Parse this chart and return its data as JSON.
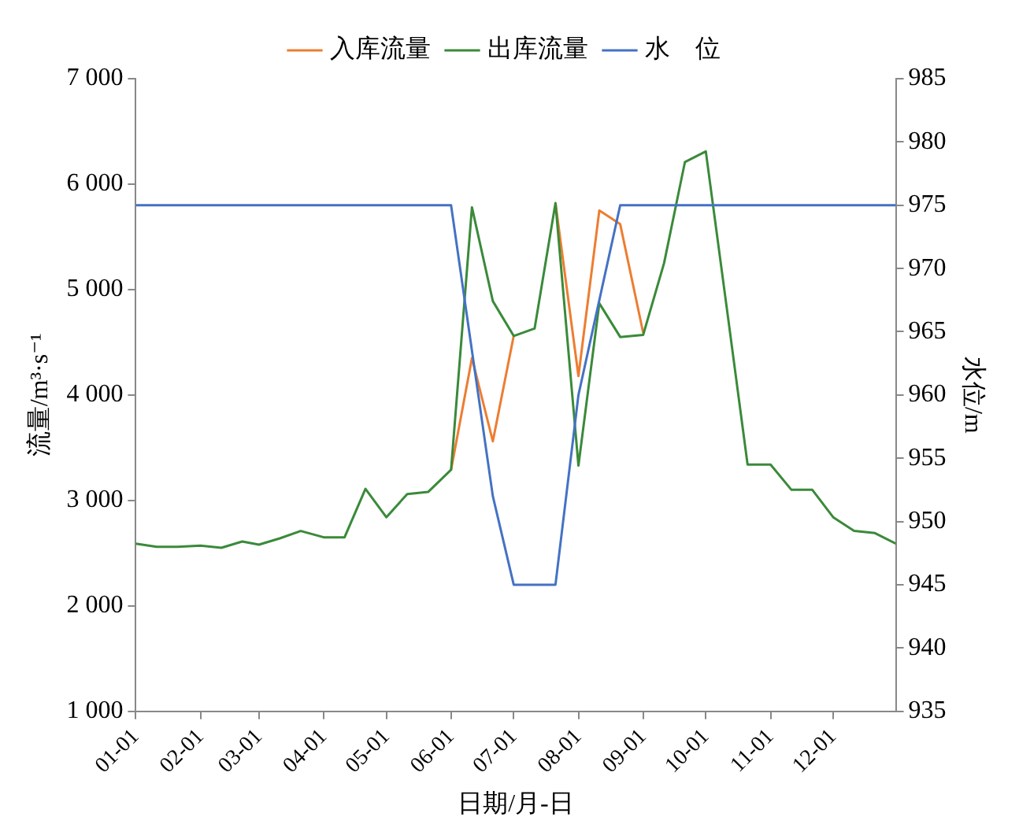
{
  "chart_data": {
    "type": "line",
    "xlabel": "日期/月-日",
    "ylabel": "流量/m³·s⁻¹",
    "y2label": "水位/m",
    "x": [
      "--01-01",
      "--01-11",
      "--01-21",
      "--02-01",
      "--02-11",
      "--02-21",
      "--03-01",
      "--03-11",
      "--03-21",
      "--04-01",
      "--04-11",
      "--04-21",
      "--05-01",
      "--05-11",
      "--05-21",
      "--06-01",
      "--06-11",
      "--06-21",
      "--07-01",
      "--07-11",
      "--07-21",
      "--08-01",
      "--08-11",
      "--08-21",
      "--09-01",
      "--09-11",
      "--09-21",
      "--10-01",
      "--10-11",
      "--10-21",
      "--11-01",
      "--11-11",
      "--11-21",
      "--12-01",
      "--12-11",
      "--12-21",
      "--12-31"
    ],
    "series": [
      {
        "name": "入库流量",
        "color": "#ed7d31",
        "values": [
          null,
          null,
          null,
          null,
          null,
          null,
          null,
          null,
          null,
          null,
          null,
          null,
          null,
          null,
          null,
          3290,
          4350,
          3560,
          4560,
          null,
          5820,
          4180,
          5750,
          5620,
          4590,
          null,
          null,
          null,
          null,
          null,
          null,
          null,
          null,
          null,
          null,
          null,
          null
        ]
      },
      {
        "name": "出库流量",
        "color": "#3a8a3a",
        "values": [
          2590,
          2560,
          2560,
          2570,
          2550,
          2610,
          2580,
          2640,
          2710,
          2650,
          2650,
          3110,
          2840,
          3060,
          3080,
          3290,
          5780,
          4890,
          4560,
          4630,
          5820,
          3330,
          4870,
          4550,
          4570,
          5250,
          6210,
          6310,
          4830,
          3340,
          3340,
          3100,
          3100,
          2840,
          2710,
          2690,
          2590
        ]
      },
      {
        "name": "水　位",
        "color": "#4472c4",
        "axis": "y2",
        "x": [
          "--01-01",
          "--06-01",
          "--06-21",
          "--07-01",
          "--07-21",
          "--08-01",
          "--08-21",
          "--12-31"
        ],
        "values": [
          975,
          975,
          952,
          945,
          945,
          960,
          975,
          975
        ]
      }
    ],
    "xlim": [
      "--01-01",
      "--12-31"
    ],
    "xticks": [
      {
        "value": "--01-01",
        "label": "01-01"
      },
      {
        "value": "--02-01",
        "label": "02-01"
      },
      {
        "value": "--03-01",
        "label": "03-01"
      },
      {
        "value": "--04-01",
        "label": "04-01"
      },
      {
        "value": "--05-01",
        "label": "05-01"
      },
      {
        "value": "--06-01",
        "label": "06-01"
      },
      {
        "value": "--07-01",
        "label": "07-01"
      },
      {
        "value": "--08-01",
        "label": "08-01"
      },
      {
        "value": "--09-01",
        "label": "09-01"
      },
      {
        "value": "--10-01",
        "label": "10-01"
      },
      {
        "value": "--11-01",
        "label": "11-01"
      },
      {
        "value": "--12-01",
        "label": "12-01"
      }
    ],
    "ylim": [
      1000,
      7000
    ],
    "yticks": [
      {
        "value": 1000,
        "label": "1 000"
      },
      {
        "value": 2000,
        "label": "2 000"
      },
      {
        "value": 3000,
        "label": "3 000"
      },
      {
        "value": 4000,
        "label": "4 000"
      },
      {
        "value": 5000,
        "label": "5 000"
      },
      {
        "value": 6000,
        "label": "6 000"
      },
      {
        "value": 7000,
        "label": "7 000"
      }
    ],
    "y2lim": [
      935,
      985
    ],
    "y2ticks": [
      935,
      940,
      945,
      950,
      955,
      960,
      965,
      970,
      975,
      980,
      985
    ],
    "grid": false,
    "legend": "top",
    "marker": "none",
    "line_style": "solid"
  }
}
